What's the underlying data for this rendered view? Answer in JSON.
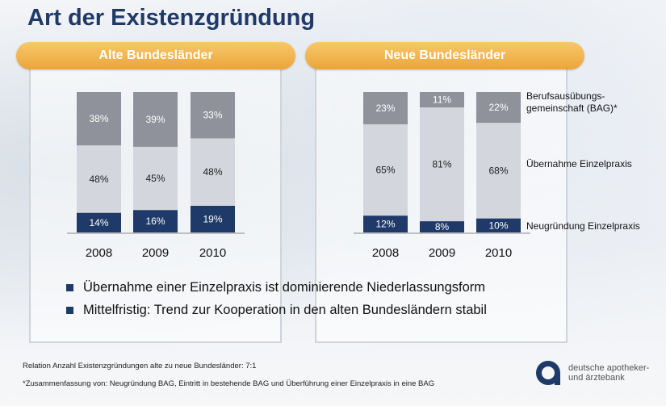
{
  "page": {
    "title": "Art der Existenzgründung",
    "bullets": [
      "Übernahme einer Einzelpraxis ist dominierende Niederlassungsform",
      "Mittelfristig: Trend zur Kooperation in den alten Bundesländern stabil"
    ],
    "footnotes": [
      "Relation Anzahl Existenzgründungen alte zu neue Bundesländer: 7:1",
      "*Zusammenfassung von: Neugründung BAG, Eintritt in bestehende BAG und Überführung einer Einzelpraxis in eine BAG"
    ],
    "logo": {
      "line1": "deutsche apotheker-",
      "line2": "und ärztebank"
    },
    "colors": {
      "navy": "#1f3a68",
      "orange": "#eaa53a",
      "grey_dark": "#8f929a",
      "grey_light": "#d3d6dc"
    }
  },
  "chart_data": [
    {
      "type": "bar",
      "stacked": true,
      "title": "Alte Bundesländer",
      "categories": [
        "2008",
        "2009",
        "2010"
      ],
      "series": [
        {
          "name": "Neugründung Einzelpraxis",
          "values": [
            14,
            16,
            19
          ],
          "labels": [
            "14%",
            "16%",
            "19%"
          ]
        },
        {
          "name": "Übernahme Einzelpraxis",
          "values": [
            48,
            45,
            48
          ],
          "labels": [
            "48%",
            "45%",
            "48%"
          ]
        },
        {
          "name": "Berufsausübungs-gemeinschaft (BAG)*",
          "values": [
            38,
            39,
            33
          ],
          "labels": [
            "38%",
            "39%",
            "33%"
          ]
        }
      ],
      "ylim": [
        0,
        100
      ]
    },
    {
      "type": "bar",
      "stacked": true,
      "title": "Neue Bundesländer",
      "categories": [
        "2008",
        "2009",
        "2010"
      ],
      "series": [
        {
          "name": "Neugründung Einzelpraxis",
          "values": [
            12,
            8,
            10
          ],
          "labels": [
            "12%",
            "8%",
            "10%"
          ]
        },
        {
          "name": "Übernahme Einzelpraxis",
          "values": [
            65,
            81,
            68
          ],
          "labels": [
            "65%",
            "81%",
            "68%"
          ]
        },
        {
          "name": "Berufsausübungs-gemeinschaft (BAG)*",
          "values": [
            23,
            11,
            22
          ],
          "labels": [
            "23%",
            "11%",
            "22%"
          ]
        }
      ],
      "ylim": [
        0,
        100
      ]
    }
  ],
  "legend": {
    "bag_line1": "Berufsausübungs-",
    "bag_line2": "gemeinschaft (BAG)*",
    "uebernahme": "Übernahme Einzelpraxis",
    "neugruendung": "Neugründung Einzelpraxis"
  }
}
